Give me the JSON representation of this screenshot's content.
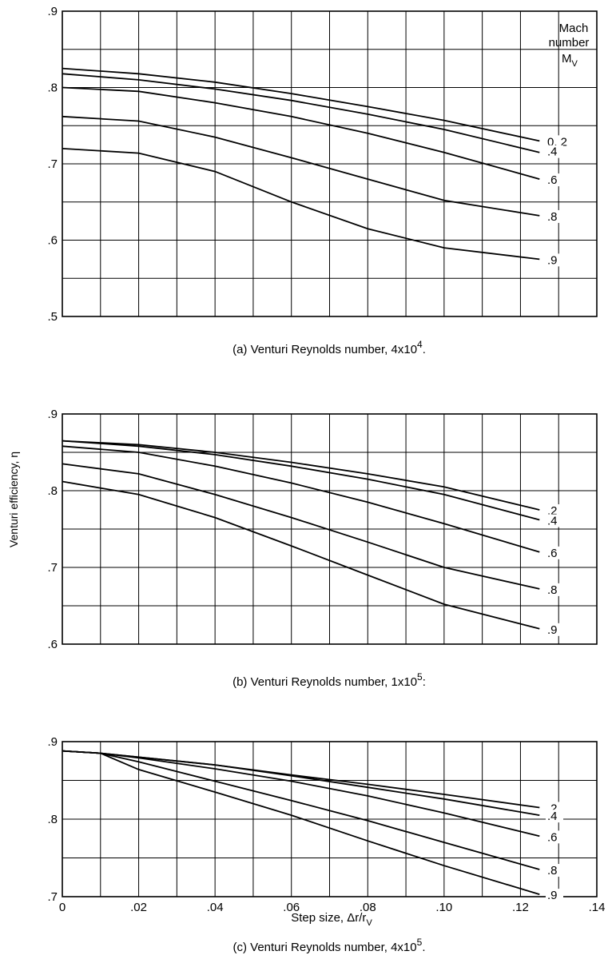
{
  "ylabel": "Venturi efficiency, η",
  "xlabel_main": "Step size, Δr/r",
  "xlabel_sub": "V",
  "legend": {
    "line1": "Mach",
    "line2": "number",
    "sym_main": "M",
    "sym_sub": "V"
  },
  "x_tick_labels": [
    "0",
    ".02",
    ".04",
    ".06",
    ".08",
    ".10",
    ".12",
    ".14"
  ],
  "chart_data": [
    {
      "type": "line",
      "caption": {
        "prefix": "(a) Venturi Reynolds number,  4x10",
        "exp": "4",
        "suffix": "."
      },
      "xlim": [
        0,
        0.14
      ],
      "ylim": [
        0.5,
        0.9
      ],
      "y_tick_labels": [
        ".9",
        ".8",
        ".7",
        ".6",
        ".5"
      ],
      "series_labels": [
        "0. 2",
        ".4",
        ".6",
        ".8",
        ".9"
      ],
      "series": [
        {
          "name": "0.2",
          "x": [
            0,
            0.02,
            0.04,
            0.06,
            0.08,
            0.1,
            0.125
          ],
          "y": [
            0.825,
            0.818,
            0.807,
            0.792,
            0.775,
            0.757,
            0.73
          ]
        },
        {
          "name": "0.4",
          "x": [
            0,
            0.02,
            0.04,
            0.06,
            0.08,
            0.1,
            0.125
          ],
          "y": [
            0.818,
            0.81,
            0.798,
            0.783,
            0.765,
            0.745,
            0.715
          ]
        },
        {
          "name": "0.6",
          "x": [
            0,
            0.02,
            0.04,
            0.06,
            0.08,
            0.1,
            0.125
          ],
          "y": [
            0.8,
            0.795,
            0.78,
            0.762,
            0.74,
            0.715,
            0.68
          ]
        },
        {
          "name": "0.8",
          "x": [
            0,
            0.02,
            0.04,
            0.06,
            0.08,
            0.1,
            0.125
          ],
          "y": [
            0.762,
            0.756,
            0.735,
            0.708,
            0.68,
            0.652,
            0.632
          ]
        },
        {
          "name": "0.9",
          "x": [
            0,
            0.02,
            0.04,
            0.06,
            0.08,
            0.1,
            0.125
          ],
          "y": [
            0.72,
            0.714,
            0.69,
            0.65,
            0.615,
            0.59,
            0.575
          ]
        }
      ]
    },
    {
      "type": "line",
      "caption": {
        "prefix": "(b) Venturi Reynolds number,  1x10",
        "exp": "5",
        "suffix": ":"
      },
      "xlim": [
        0,
        0.14
      ],
      "ylim": [
        0.6,
        0.9
      ],
      "y_tick_labels": [
        ".9",
        ".8",
        ".7",
        ".6"
      ],
      "series_labels": [
        ".2",
        ".4",
        ".6",
        ".8",
        ".9"
      ],
      "series": [
        {
          "name": "0.2",
          "x": [
            0,
            0.02,
            0.04,
            0.06,
            0.08,
            0.1,
            0.125
          ],
          "y": [
            0.865,
            0.86,
            0.85,
            0.837,
            0.822,
            0.805,
            0.775
          ]
        },
        {
          "name": "0.4",
          "x": [
            0,
            0.02,
            0.04,
            0.06,
            0.08,
            0.1,
            0.125
          ],
          "y": [
            0.865,
            0.858,
            0.847,
            0.832,
            0.815,
            0.795,
            0.762
          ]
        },
        {
          "name": "0.6",
          "x": [
            0,
            0.02,
            0.04,
            0.06,
            0.08,
            0.1,
            0.125
          ],
          "y": [
            0.858,
            0.85,
            0.832,
            0.81,
            0.785,
            0.757,
            0.72
          ]
        },
        {
          "name": "0.8",
          "x": [
            0,
            0.02,
            0.04,
            0.06,
            0.08,
            0.1,
            0.125
          ],
          "y": [
            0.835,
            0.822,
            0.795,
            0.765,
            0.733,
            0.7,
            0.672
          ]
        },
        {
          "name": "0.9",
          "x": [
            0,
            0.02,
            0.04,
            0.06,
            0.08,
            0.1,
            0.125
          ],
          "y": [
            0.812,
            0.795,
            0.765,
            0.728,
            0.69,
            0.652,
            0.62
          ]
        }
      ]
    },
    {
      "type": "line",
      "caption": {
        "prefix": "(c) Venturi Reynolds number,  4x10",
        "exp": "5",
        "suffix": "."
      },
      "xlim": [
        0,
        0.14
      ],
      "ylim": [
        0.7,
        0.9
      ],
      "y_tick_labels": [
        ".9",
        ".8",
        ".7"
      ],
      "series_labels": [
        ".2",
        ".4",
        ".6",
        ".8",
        ".9"
      ],
      "series": [
        {
          "name": "0.2",
          "x": [
            0,
            0.01,
            0.02,
            0.04,
            0.06,
            0.08,
            0.1,
            0.125
          ],
          "y": [
            0.888,
            0.885,
            0.88,
            0.87,
            0.857,
            0.845,
            0.832,
            0.815
          ]
        },
        {
          "name": "0.4",
          "x": [
            0,
            0.01,
            0.02,
            0.04,
            0.06,
            0.08,
            0.1,
            0.125
          ],
          "y": [
            0.888,
            0.885,
            0.88,
            0.87,
            0.856,
            0.841,
            0.826,
            0.805
          ]
        },
        {
          "name": "0.6",
          "x": [
            0,
            0.01,
            0.02,
            0.04,
            0.06,
            0.08,
            0.1,
            0.125
          ],
          "y": [
            0.888,
            0.885,
            0.879,
            0.865,
            0.849,
            0.83,
            0.808,
            0.778
          ]
        },
        {
          "name": "0.8",
          "x": [
            0,
            0.01,
            0.02,
            0.04,
            0.06,
            0.08,
            0.1,
            0.125
          ],
          "y": [
            0.888,
            0.885,
            0.874,
            0.849,
            0.824,
            0.798,
            0.77,
            0.735
          ]
        },
        {
          "name": "0.9",
          "x": [
            0,
            0.01,
            0.02,
            0.04,
            0.06,
            0.08,
            0.1,
            0.125
          ],
          "y": [
            0.888,
            0.885,
            0.864,
            0.835,
            0.805,
            0.772,
            0.74,
            0.703
          ]
        }
      ]
    }
  ]
}
